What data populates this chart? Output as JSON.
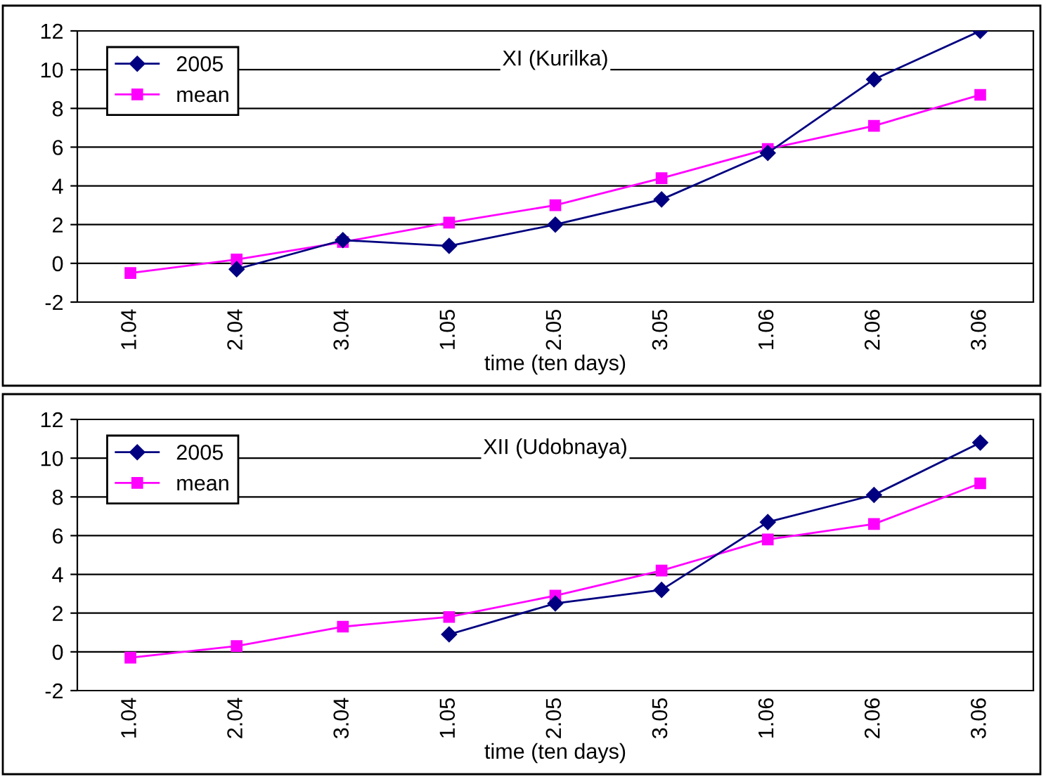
{
  "chart_data": [
    {
      "type": "line",
      "title": "XI (Kurilka)",
      "xlabel": "time (ten days)",
      "categories": [
        "1.04",
        "2.04",
        "3.04",
        "1.05",
        "2.05",
        "3.05",
        "1.06",
        "2.06",
        "3.06"
      ],
      "series": [
        {
          "name": "2005",
          "color": "#000080",
          "marker": "diamond",
          "values": [
            null,
            -0.3,
            1.2,
            0.9,
            2.0,
            3.3,
            5.7,
            9.5,
            12.0
          ]
        },
        {
          "name": "mean",
          "color": "#ff00ff",
          "marker": "square",
          "values": [
            -0.5,
            0.2,
            1.1,
            2.1,
            3.0,
            4.4,
            5.9,
            7.1,
            8.7
          ]
        }
      ],
      "ylim": [
        -2,
        12
      ],
      "yticks": [
        -2,
        0,
        2,
        4,
        6,
        8,
        10,
        12
      ],
      "grid": "y",
      "legend": "top left"
    },
    {
      "type": "line",
      "title": "XII (Udobnaya)",
      "xlabel": "time (ten days)",
      "categories": [
        "1.04",
        "2.04",
        "3.04",
        "1.05",
        "2.05",
        "3.05",
        "1.06",
        "2.06",
        "3.06"
      ],
      "series": [
        {
          "name": "2005",
          "color": "#000080",
          "marker": "diamond",
          "values": [
            null,
            null,
            null,
            0.9,
            2.5,
            3.2,
            6.7,
            8.1,
            10.8
          ]
        },
        {
          "name": "mean",
          "color": "#ff00ff",
          "marker": "square",
          "values": [
            -0.3,
            0.3,
            1.3,
            1.8,
            2.9,
            4.2,
            5.8,
            6.6,
            8.7
          ]
        }
      ],
      "ylim": [
        -2,
        12
      ],
      "yticks": [
        -2,
        0,
        2,
        4,
        6,
        8,
        10,
        12
      ],
      "grid": "y",
      "legend": "top left"
    }
  ]
}
